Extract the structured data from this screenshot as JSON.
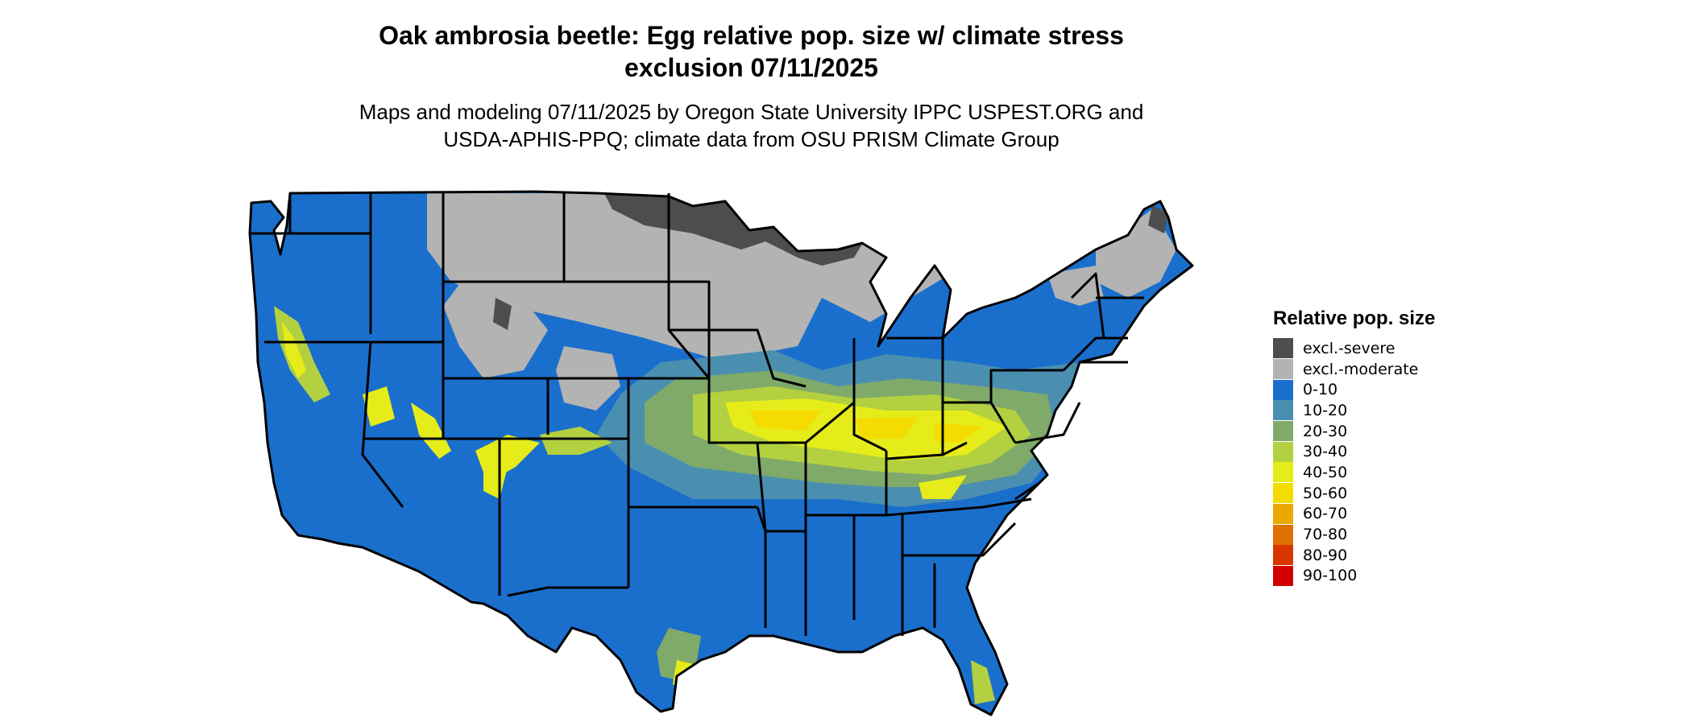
{
  "header": {
    "title_line1": "Oak ambrosia beetle: Egg relative pop. size w/ climate stress",
    "title_line2": "exclusion 07/11/2025",
    "subtitle_line1": "Maps and modeling 07/11/2025 by Oregon State University IPPC USPEST.ORG and",
    "subtitle_line2": "USDA-APHIS-PPQ; climate data from OSU PRISM Climate Group"
  },
  "legend": {
    "title": "Relative pop. size",
    "items": [
      {
        "label": "excl.-severe",
        "color": "#4d4d4d"
      },
      {
        "label": "excl.-moderate",
        "color": "#b3b3b3"
      },
      {
        "label": "0-10",
        "color": "#1a6fcc"
      },
      {
        "label": "10-20",
        "color": "#4a8fb0"
      },
      {
        "label": "20-30",
        "color": "#7faa6a"
      },
      {
        "label": "30-40",
        "color": "#b3d040"
      },
      {
        "label": "40-50",
        "color": "#e6eb1a"
      },
      {
        "label": "50-60",
        "color": "#f5dc00"
      },
      {
        "label": "60-70",
        "color": "#eba800"
      },
      {
        "label": "70-80",
        "color": "#e07000"
      },
      {
        "label": "80-90",
        "color": "#d93500"
      },
      {
        "label": "90-100",
        "color": "#d10000"
      }
    ]
  }
}
